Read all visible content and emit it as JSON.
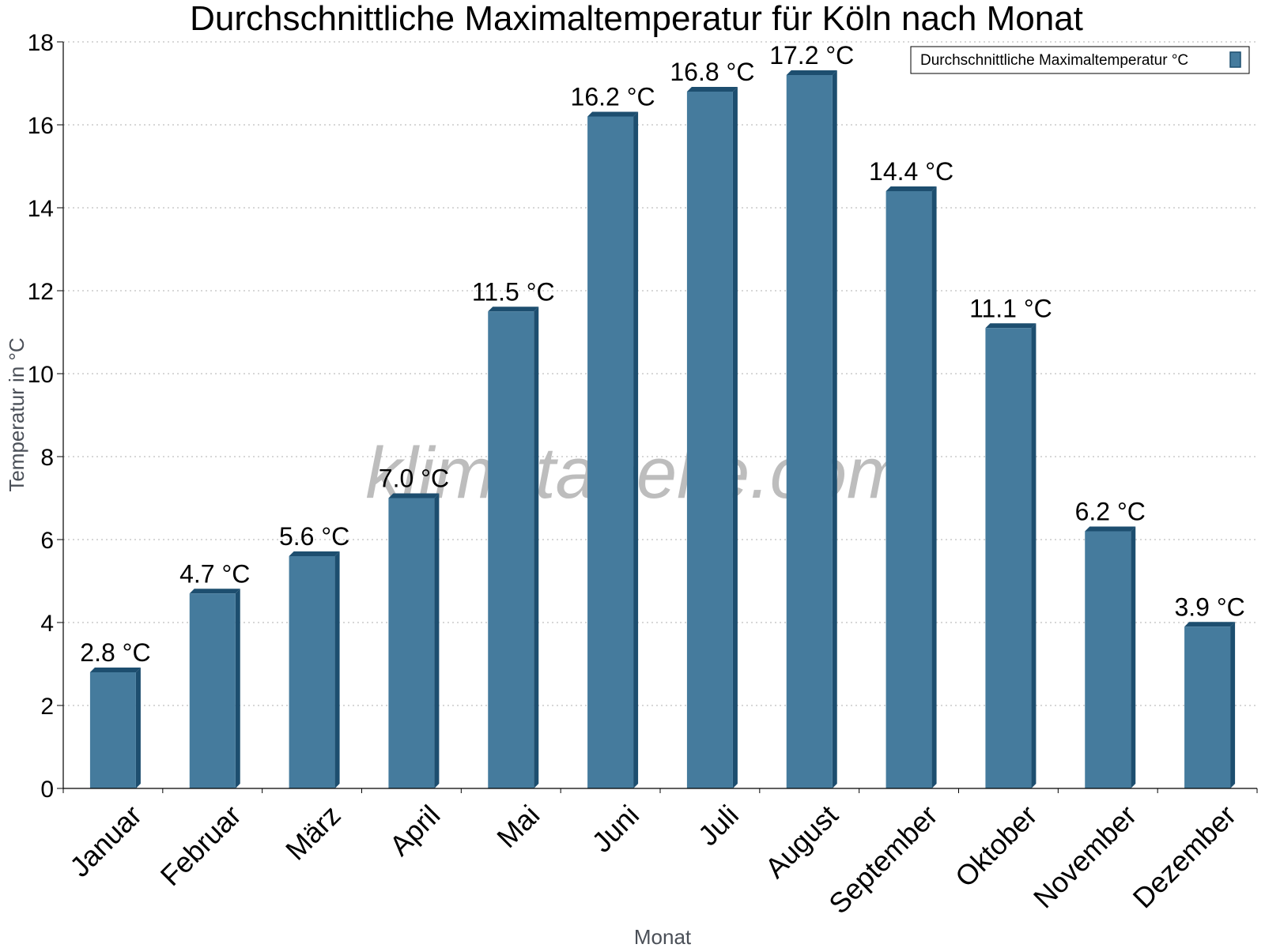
{
  "chart_data": {
    "type": "bar",
    "title": "Durchschnittliche Maximaltemperatur für Köln nach Monat",
    "xlabel": "Monat",
    "ylabel": "Temperatur in °C",
    "categories": [
      "Januar",
      "Februar",
      "März",
      "April",
      "Mai",
      "Juni",
      "Juli",
      "August",
      "September",
      "Oktober",
      "November",
      "Dezember"
    ],
    "series": [
      {
        "name": "Durchschnittliche Maximaltemperatur °C",
        "values": [
          2.8,
          4.7,
          5.6,
          7.0,
          11.5,
          16.2,
          16.8,
          17.2,
          14.4,
          11.1,
          6.2,
          3.9
        ],
        "labels": [
          "2.8 °C",
          "4.7 °C",
          "5.6 °C",
          "7.0 °C",
          "11.5 °C",
          "16.2 °C",
          "16.8 °C",
          "17.2 °C",
          "14.4 °C",
          "11.1 °C",
          "6.2 °C",
          "3.9 °C"
        ],
        "color": "#457b9d",
        "edge_color": "#1d4e6f"
      }
    ],
    "ylim": [
      0,
      18
    ],
    "yticks": [
      0,
      2,
      4,
      6,
      8,
      10,
      12,
      14,
      16,
      18
    ],
    "grid": true,
    "legend_position": "top-right",
    "watermark": "klimatabelle.com"
  }
}
